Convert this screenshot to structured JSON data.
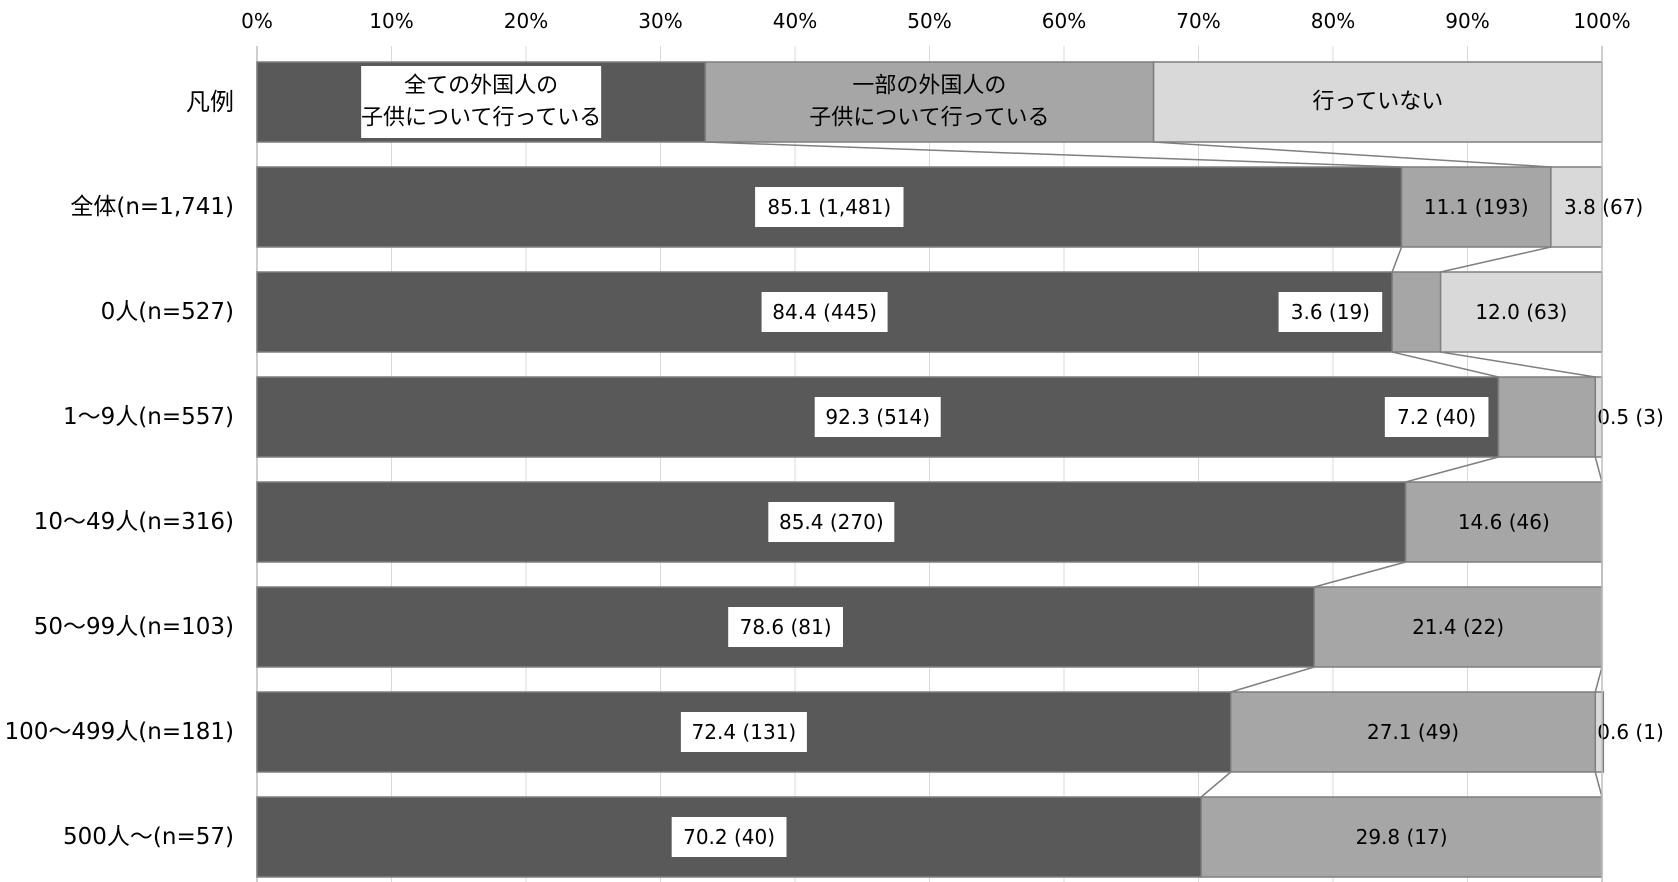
{
  "chart_data": {
    "type": "bar",
    "orientation": "horizontal",
    "stacked": true,
    "percent_axis": {
      "min": 0,
      "max": 100,
      "ticks": [
        "0%",
        "10%",
        "20%",
        "30%",
        "40%",
        "50%",
        "60%",
        "70%",
        "80%",
        "90%",
        "100%"
      ]
    },
    "grid": true,
    "legend_row": {
      "label": "凡例",
      "segments": [
        {
          "text": [
            "全ての外国人の",
            "子供について行っている"
          ],
          "value": 33.33
        },
        {
          "text": [
            "一部の外国人の",
            "子供について行っている"
          ],
          "value": 33.33
        },
        {
          "text": [
            "行っていない"
          ],
          "value": 33.34
        }
      ]
    },
    "categories": [
      "全体(n=1,741)",
      "0人(n=527)",
      "1～9人(n=557)",
      "10～49人(n=316)",
      "50～99人(n=103)",
      "100～499人(n=181)",
      "500人～(n=57)"
    ],
    "series": [
      {
        "name": "全ての外国人の子供について行っている",
        "color": "#595959",
        "values": [
          85.1,
          84.4,
          92.3,
          85.4,
          78.6,
          72.4,
          70.2
        ],
        "labels": [
          "85.1 (1,481)",
          "84.4 (445)",
          "92.3 (514)",
          "85.4 (270)",
          "78.6 (81)",
          "72.4 (131)",
          "70.2 (40)"
        ]
      },
      {
        "name": "一部の外国人の子供について行っている",
        "color": "#a6a6a6",
        "values": [
          11.1,
          3.6,
          7.2,
          14.6,
          21.4,
          27.1,
          29.8
        ],
        "labels": [
          "11.1 (193)",
          "3.6 (19)",
          "7.2 (40)",
          "14.6 (46)",
          "21.4 (22)",
          "27.1 (49)",
          "29.8 (17)"
        ]
      },
      {
        "name": "行っていない",
        "color": "#d9d9d9",
        "values": [
          3.8,
          12.0,
          0.5,
          0,
          0,
          0.6,
          0
        ],
        "labels": [
          "3.8 (67)",
          "12.0 (63)",
          "0.5 (3)",
          "",
          "",
          "0.6 (1)",
          ""
        ]
      }
    ]
  }
}
